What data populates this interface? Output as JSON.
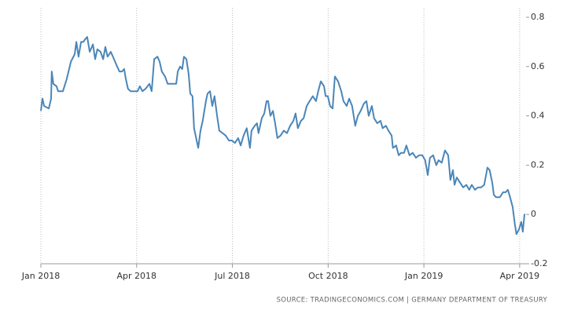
{
  "chart_data": {
    "type": "line",
    "source": "SOURCE: TRADINGECONOMICS.COM  |  GERMANY DEPARTMENT OF TREASURY",
    "xlim": [
      0,
      15.2
    ],
    "xticks": [
      {
        "value": 0,
        "label": "Jan 2018"
      },
      {
        "value": 3,
        "label": "Apr 2018"
      },
      {
        "value": 6,
        "label": "Jul 2018"
      },
      {
        "value": 9,
        "label": "Oct 2018"
      },
      {
        "value": 12,
        "label": "Jan 2019"
      },
      {
        "value": 15,
        "label": "Apr 2019"
      }
    ],
    "ylim": [
      -0.2,
      0.8
    ],
    "yticks": [
      -0.2,
      0,
      0.2,
      0.4,
      0.6,
      0.8
    ],
    "grid": true,
    "series": [
      {
        "color": "#4a86b8",
        "x": [
          0,
          0.05,
          0.1,
          0.25,
          0.32,
          0.34,
          0.39,
          0.49,
          0.54,
          0.69,
          0.81,
          0.94,
          1.06,
          1.11,
          1.18,
          1.26,
          1.33,
          1.38,
          1.45,
          1.53,
          1.63,
          1.7,
          1.77,
          1.87,
          1.95,
          2.02,
          2.09,
          2.19,
          2.29,
          2.39,
          2.46,
          2.54,
          2.61,
          2.66,
          2.73,
          2.81,
          2.93,
          3.03,
          3.1,
          3.18,
          3.28,
          3.4,
          3.47,
          3.55,
          3.65,
          3.72,
          3.79,
          3.89,
          3.97,
          4.11,
          4.24,
          4.29,
          4.36,
          4.43,
          4.48,
          4.56,
          4.63,
          4.68,
          4.75,
          4.8,
          4.88,
          4.93,
          5.0,
          5.07,
          5.17,
          5.22,
          5.3,
          5.37,
          5.44,
          5.52,
          5.59,
          5.69,
          5.79,
          5.89,
          5.99,
          6.08,
          6.18,
          6.26,
          6.35,
          6.45,
          6.55,
          6.6,
          6.7,
          6.77,
          6.82,
          6.92,
          7.0,
          7.07,
          7.12,
          7.19,
          7.27,
          7.34,
          7.41,
          7.51,
          7.61,
          7.71,
          7.81,
          7.91,
          7.98,
          8.05,
          8.15,
          8.23,
          8.33,
          8.42,
          8.52,
          8.62,
          8.69,
          8.77,
          8.87,
          8.92,
          8.99,
          9.06,
          9.14,
          9.21,
          9.31,
          9.41,
          9.48,
          9.58,
          9.66,
          9.75,
          9.85,
          9.93,
          10.02,
          10.12,
          10.2,
          10.27,
          10.37,
          10.44,
          10.54,
          10.64,
          10.71,
          10.81,
          10.89,
          10.99,
          11.03,
          11.13,
          11.21,
          11.28,
          11.38,
          11.45,
          11.55,
          11.65,
          11.75,
          11.85,
          11.95,
          12.04,
          12.12,
          12.19,
          12.29,
          12.39,
          12.46,
          12.56,
          12.66,
          12.76,
          12.83,
          12.91,
          12.96,
          13.03,
          13.13,
          13.23,
          13.33,
          13.42,
          13.5,
          13.6,
          13.69,
          13.79,
          13.89,
          13.99,
          14.06,
          14.14,
          14.19,
          14.26,
          14.38,
          14.48,
          14.56,
          14.63,
          14.7,
          14.78,
          14.85,
          14.9,
          14.98,
          15.05,
          15.1,
          15.15,
          15.17
        ],
        "values": [
          0.42,
          0.47,
          0.44,
          0.43,
          0.47,
          0.58,
          0.53,
          0.52,
          0.5,
          0.5,
          0.55,
          0.62,
          0.65,
          0.7,
          0.64,
          0.7,
          0.7,
          0.71,
          0.72,
          0.66,
          0.69,
          0.63,
          0.67,
          0.66,
          0.63,
          0.68,
          0.64,
          0.66,
          0.63,
          0.6,
          0.58,
          0.58,
          0.59,
          0.55,
          0.51,
          0.5,
          0.5,
          0.5,
          0.52,
          0.5,
          0.51,
          0.53,
          0.5,
          0.63,
          0.64,
          0.62,
          0.58,
          0.56,
          0.53,
          0.53,
          0.53,
          0.58,
          0.6,
          0.59,
          0.64,
          0.63,
          0.57,
          0.49,
          0.48,
          0.35,
          0.3,
          0.27,
          0.34,
          0.38,
          0.46,
          0.49,
          0.5,
          0.44,
          0.48,
          0.4,
          0.34,
          0.33,
          0.32,
          0.3,
          0.3,
          0.29,
          0.31,
          0.28,
          0.32,
          0.35,
          0.27,
          0.34,
          0.36,
          0.37,
          0.33,
          0.39,
          0.41,
          0.46,
          0.46,
          0.4,
          0.42,
          0.37,
          0.31,
          0.32,
          0.34,
          0.33,
          0.36,
          0.38,
          0.41,
          0.35,
          0.38,
          0.39,
          0.44,
          0.46,
          0.48,
          0.46,
          0.5,
          0.54,
          0.52,
          0.48,
          0.48,
          0.44,
          0.43,
          0.56,
          0.54,
          0.5,
          0.46,
          0.44,
          0.47,
          0.44,
          0.36,
          0.4,
          0.42,
          0.45,
          0.46,
          0.4,
          0.44,
          0.39,
          0.37,
          0.38,
          0.35,
          0.36,
          0.34,
          0.32,
          0.27,
          0.28,
          0.24,
          0.25,
          0.25,
          0.28,
          0.24,
          0.25,
          0.23,
          0.24,
          0.24,
          0.22,
          0.16,
          0.23,
          0.24,
          0.2,
          0.22,
          0.21,
          0.26,
          0.24,
          0.14,
          0.18,
          0.12,
          0.15,
          0.13,
          0.11,
          0.12,
          0.1,
          0.12,
          0.1,
          0.11,
          0.11,
          0.12,
          0.19,
          0.18,
          0.13,
          0.08,
          0.07,
          0.07,
          0.09,
          0.09,
          0.1,
          0.07,
          0.03,
          -0.04,
          -0.08,
          -0.06,
          -0.03,
          -0.07,
          0.0,
          0.0
        ]
      }
    ]
  }
}
